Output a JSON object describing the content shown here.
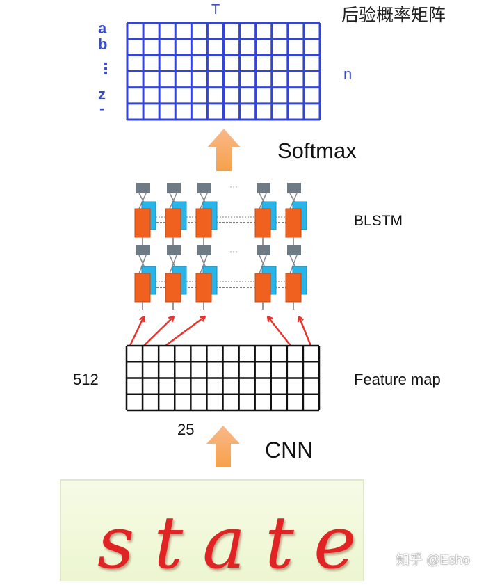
{
  "matrix": {
    "title": "后验概率矩阵",
    "time_label": "T",
    "size_label": "n",
    "row_labels": [
      "a",
      "b",
      "⋮",
      "z",
      "-"
    ],
    "rows": 6,
    "cols": 12,
    "color": "#3344dd"
  },
  "softmax": {
    "label": "Softmax"
  },
  "blstm": {
    "label": "BLSTM",
    "ellipsis": "···",
    "forward_color": "#f0601e",
    "backward_color": "#27b4e8",
    "output_color": "#6e7b85"
  },
  "feature_map": {
    "label": "Feature map",
    "height_label": "512",
    "width_label": "25",
    "rows": 4,
    "cols": 12
  },
  "cnn": {
    "label": "CNN"
  },
  "input_image": {
    "text": "state"
  },
  "watermark": "知乎 @Esho",
  "colors": {
    "arrow": "#f7a55a",
    "connection": "#e8332a"
  }
}
